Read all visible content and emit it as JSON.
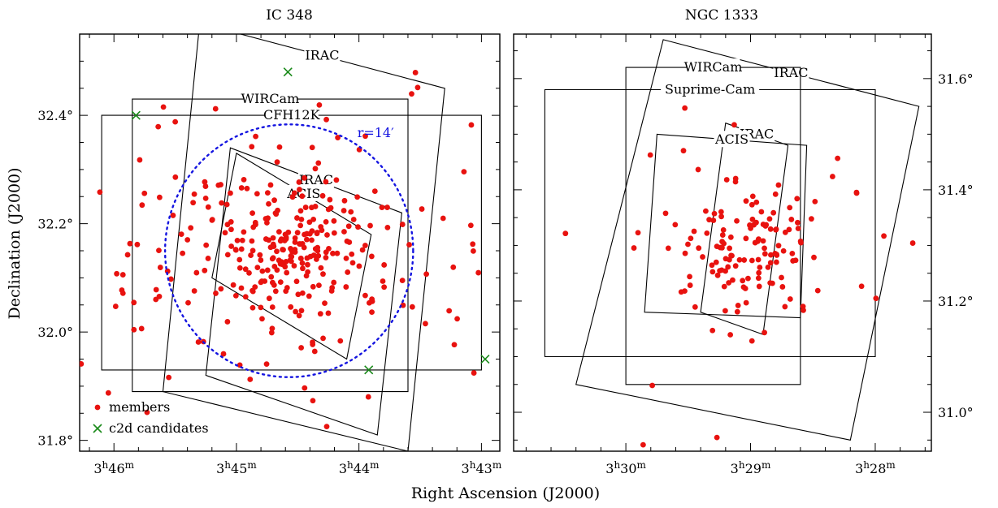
{
  "figure": {
    "xlabel": "Right Ascension (J2000)",
    "ylabel": "Declination (J2000)"
  },
  "chart_data": [
    {
      "type": "scatter",
      "title": "IC 348",
      "xlabel": "Right Ascension (J2000)",
      "ylabel": "Declination (J2000)",
      "xlim_minutes_of_ra": [
        46.28,
        42.85
      ],
      "ylim_deg": [
        31.78,
        32.55
      ],
      "x_ticks": [
        {
          "value": 46,
          "label": "3h46m"
        },
        {
          "value": 45,
          "label": "3h45m"
        },
        {
          "value": 44,
          "label": "3h44m"
        },
        {
          "value": 43,
          "label": "3h43m"
        }
      ],
      "y_ticks": [
        {
          "value": 31.8,
          "label": "31.8°"
        },
        {
          "value": 32.0,
          "label": "32.0°"
        },
        {
          "value": 32.2,
          "label": "32.2°"
        },
        {
          "value": 32.4,
          "label": "32.4°"
        }
      ],
      "ra_labels": {
        "h": "3",
        "m": "m"
      },
      "legend": {
        "position": "bottom-left",
        "entries": [
          {
            "label": "members",
            "color": "#e8120f",
            "marker": "dot"
          },
          {
            "label": "c2d candidates",
            "color": "#1a8a1a",
            "marker": "x"
          }
        ]
      },
      "circle": {
        "label": "r=14′",
        "color": "#1414e0",
        "center": [
          44.57,
          32.15
        ],
        "radius_deg": 0.2333
      },
      "footprints": [
        {
          "label": "IRAC",
          "ra_dec": [
            [
              45.3,
              32.57
            ],
            [
              43.3,
              32.45
            ],
            [
              43.6,
              31.78
            ],
            [
              45.6,
              31.89
            ]
          ]
        },
        {
          "label": "WIRCam",
          "ra_dec": [
            [
              45.85,
              32.43
            ],
            [
              43.6,
              32.43
            ],
            [
              43.6,
              31.89
            ],
            [
              45.85,
              31.89
            ]
          ]
        },
        {
          "label": "CFH12K",
          "ra_dec": [
            [
              46.1,
              32.4
            ],
            [
              43.0,
              32.4
            ],
            [
              43.0,
              31.93
            ],
            [
              46.1,
              31.93
            ]
          ]
        },
        {
          "label": "IRAC",
          "ra_dec": [
            [
              45.05,
              32.34
            ],
            [
              43.65,
              32.22
            ],
            [
              43.85,
              31.81
            ],
            [
              45.25,
              31.92
            ]
          ]
        },
        {
          "label": "ACIS",
          "ra_dec": [
            [
              45.0,
              32.33
            ],
            [
              43.9,
              32.18
            ],
            [
              44.1,
              31.95
            ],
            [
              45.2,
              32.1
            ]
          ]
        }
      ],
      "c2d_candidates": [
        [
          45.82,
          32.4
        ],
        [
          44.58,
          32.48
        ],
        [
          43.92,
          31.93
        ],
        [
          42.97,
          31.95
        ]
      ],
      "members_summary": {
        "count_estimated": 330,
        "core_center": [
          44.57,
          32.15
        ]
      }
    },
    {
      "type": "scatter",
      "title": "NGC 1333",
      "xlabel": "Right Ascension (J2000)",
      "ylabel": "Declination (J2000)",
      "xlim_minutes_of_ra": [
        30.9,
        27.55
      ],
      "ylim_deg": [
        30.93,
        31.68
      ],
      "x_ticks": [
        {
          "value": 30,
          "label": "3h30m"
        },
        {
          "value": 29,
          "label": "3h29m"
        },
        {
          "value": 28,
          "label": "3h28m"
        }
      ],
      "y_ticks": [
        {
          "value": 31.0,
          "label": "31.0°"
        },
        {
          "value": 31.2,
          "label": "31.2°"
        },
        {
          "value": 31.4,
          "label": "31.4°"
        },
        {
          "value": 31.6,
          "label": "31.6°"
        }
      ],
      "ra_labels": {
        "h": "3",
        "m": "m"
      },
      "footprints": [
        {
          "label": "IRAC",
          "ra_dec": [
            [
              29.7,
              31.67
            ],
            [
              27.65,
              31.55
            ],
            [
              28.2,
              30.95
            ],
            [
              30.4,
              31.05
            ]
          ]
        },
        {
          "label": "WIRCam",
          "ra_dec": [
            [
              30.0,
              31.62
            ],
            [
              28.6,
              31.62
            ],
            [
              28.6,
              31.05
            ],
            [
              30.0,
              31.05
            ]
          ]
        },
        {
          "label": "Suprime-Cam",
          "ra_dec": [
            [
              30.65,
              31.58
            ],
            [
              28.0,
              31.58
            ],
            [
              28.0,
              31.1
            ],
            [
              30.65,
              31.1
            ]
          ]
        },
        {
          "label": "IRAC",
          "ra_dec": [
            [
              29.2,
              31.52
            ],
            [
              28.7,
              31.48
            ],
            [
              28.9,
              31.14
            ],
            [
              29.4,
              31.18
            ]
          ]
        },
        {
          "label": "ACIS",
          "ra_dec": [
            [
              29.75,
              31.5
            ],
            [
              28.55,
              31.48
            ],
            [
              28.6,
              31.17
            ],
            [
              29.85,
              31.18
            ]
          ]
        }
      ],
      "members_summary": {
        "count_estimated": 150,
        "core_center": [
          29.0,
          31.3
        ]
      }
    }
  ]
}
